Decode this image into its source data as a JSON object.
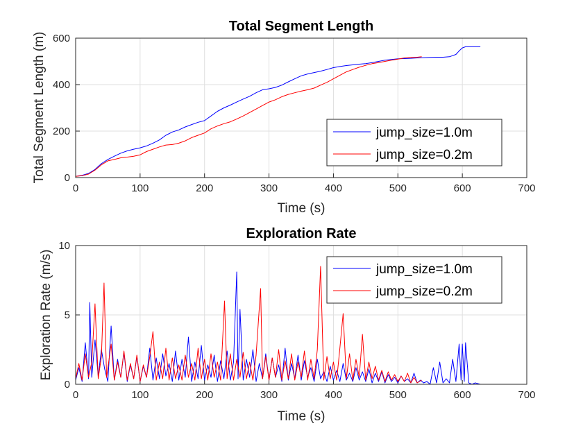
{
  "chart_data": [
    {
      "type": "line",
      "title": "Total Segment Length",
      "xlabel": "Time (s)",
      "ylabel": "Total Segment Length (m)",
      "xlim": [
        0,
        700
      ],
      "ylim": [
        0,
        600
      ],
      "xticks": [
        "0",
        "100",
        "200",
        "300",
        "400",
        "500",
        "600",
        "700"
      ],
      "yticks": [
        "0",
        "200",
        "400",
        "600"
      ],
      "grid": true,
      "legend_position": "bottom-right",
      "series": [
        {
          "name": "jump_size=1.0m",
          "color": "#0000ff",
          "x": [
            0,
            10,
            20,
            30,
            40,
            50,
            60,
            70,
            80,
            90,
            100,
            110,
            120,
            130,
            140,
            150,
            160,
            170,
            180,
            190,
            200,
            210,
            220,
            230,
            240,
            250,
            260,
            270,
            280,
            290,
            300,
            310,
            320,
            330,
            340,
            350,
            360,
            370,
            380,
            390,
            400,
            410,
            420,
            430,
            440,
            450,
            460,
            470,
            480,
            490,
            500,
            510,
            520,
            530,
            540,
            550,
            560,
            570,
            580,
            590,
            595,
            600,
            605,
            610,
            620,
            628
          ],
          "y": [
            5,
            10,
            18,
            35,
            60,
            78,
            92,
            105,
            115,
            122,
            128,
            136,
            148,
            162,
            182,
            196,
            205,
            218,
            228,
            238,
            245,
            265,
            285,
            300,
            312,
            325,
            338,
            350,
            365,
            378,
            382,
            388,
            398,
            412,
            425,
            438,
            446,
            452,
            458,
            465,
            473,
            478,
            482,
            485,
            488,
            490,
            495,
            500,
            505,
            508,
            511,
            512,
            513,
            515,
            516,
            517,
            518,
            518,
            520,
            530,
            545,
            558,
            563,
            563,
            563,
            563
          ]
        },
        {
          "name": "jump_size=0.2m",
          "color": "#ff0000",
          "x": [
            0,
            10,
            20,
            30,
            40,
            50,
            60,
            70,
            80,
            90,
            100,
            110,
            120,
            130,
            140,
            150,
            160,
            170,
            180,
            190,
            200,
            210,
            220,
            230,
            240,
            250,
            260,
            270,
            280,
            290,
            300,
            310,
            320,
            330,
            340,
            350,
            360,
            370,
            380,
            390,
            400,
            410,
            420,
            430,
            440,
            450,
            460,
            470,
            480,
            490,
            500,
            510,
            520,
            530,
            537
          ],
          "y": [
            5,
            8,
            15,
            32,
            55,
            72,
            78,
            85,
            88,
            92,
            98,
            112,
            122,
            132,
            140,
            142,
            148,
            158,
            172,
            182,
            192,
            210,
            222,
            232,
            240,
            252,
            265,
            280,
            295,
            310,
            325,
            335,
            348,
            358,
            365,
            372,
            378,
            385,
            398,
            410,
            425,
            440,
            455,
            465,
            475,
            483,
            490,
            495,
            500,
            505,
            510,
            515,
            517,
            518,
            520
          ]
        }
      ]
    },
    {
      "type": "line",
      "title": "Exploration Rate",
      "xlabel": "Time (s)",
      "ylabel": "Exploration Rate (m/s)",
      "xlim": [
        0,
        700
      ],
      "ylim": [
        0,
        10
      ],
      "xticks": [
        "0",
        "100",
        "200",
        "300",
        "400",
        "500",
        "600",
        "700"
      ],
      "yticks": [
        "0",
        "5",
        "10"
      ],
      "grid": true,
      "legend_position": "top-right",
      "series": [
        {
          "name": "jump_size=1.0m",
          "color": "#0000ff",
          "x": [
            0,
            5,
            10,
            15,
            20,
            22,
            25,
            30,
            35,
            40,
            45,
            50,
            55,
            60,
            65,
            70,
            75,
            80,
            85,
            90,
            95,
            100,
            105,
            110,
            115,
            120,
            125,
            130,
            135,
            140,
            145,
            150,
            155,
            160,
            165,
            170,
            175,
            180,
            185,
            190,
            195,
            200,
            205,
            210,
            215,
            220,
            225,
            230,
            235,
            240,
            245,
            250,
            252,
            255,
            260,
            265,
            270,
            275,
            280,
            285,
            290,
            295,
            300,
            305,
            310,
            315,
            320,
            325,
            330,
            335,
            340,
            345,
            350,
            355,
            360,
            365,
            370,
            375,
            380,
            385,
            390,
            395,
            400,
            405,
            410,
            415,
            420,
            425,
            430,
            435,
            440,
            445,
            450,
            455,
            460,
            465,
            470,
            475,
            480,
            485,
            490,
            495,
            500,
            505,
            510,
            515,
            520,
            525,
            530,
            535,
            540,
            545,
            550,
            555,
            560,
            565,
            570,
            575,
            580,
            585,
            590,
            595,
            598,
            600,
            603,
            605,
            610,
            615,
            620,
            628
          ],
          "y": [
            0.3,
            1.2,
            0.2,
            3.0,
            0.4,
            5.9,
            0.5,
            3.2,
            0.6,
            2.5,
            1.1,
            0.2,
            4.2,
            0.3,
            1.8,
            0.5,
            2.3,
            0.2,
            1.4,
            0.4,
            2.0,
            0.2,
            1.3,
            0.5,
            2.6,
            0.3,
            1.9,
            0.4,
            2.2,
            0.6,
            1.5,
            0.2,
            2.4,
            0.3,
            1.8,
            0.5,
            3.4,
            0.2,
            1.6,
            0.4,
            2.8,
            0.3,
            1.4,
            0.5,
            2.1,
            0.2,
            1.7,
            0.4,
            2.4,
            0.3,
            1.6,
            8.1,
            0.4,
            5.4,
            0.3,
            1.8,
            0.5,
            2.5,
            0.2,
            1.5,
            0.4,
            2.2,
            0.3,
            1.9,
            0.5,
            1.4,
            0.2,
            2.6,
            0.3,
            1.5,
            0.4,
            2.1,
            0.3,
            1.7,
            0.5,
            1.2,
            0.2,
            1.8,
            0.4,
            0.9,
            0.2,
            1.3,
            0.3,
            1.0,
            0.2,
            1.5,
            0.3,
            0.8,
            0.2,
            1.2,
            0.3,
            0.9,
            0.2,
            1.1,
            0.1,
            0.8,
            0.2,
            0.9,
            0.1,
            0.7,
            0.2,
            0.5,
            0.1,
            0.6,
            0.2,
            0.4,
            0.1,
            0.8,
            0.1,
            0.3,
            0.1,
            0.2,
            0.0,
            1.2,
            0.1,
            1.6,
            0.1,
            0.4,
            0.1,
            1.8,
            0.2,
            2.9,
            0.3,
            2.9,
            0.2,
            3.0,
            0.1,
            0.0,
            0.1,
            0.0
          ]
        },
        {
          "name": "jump_size=0.2m",
          "color": "#ff0000",
          "x": [
            0,
            5,
            10,
            15,
            20,
            25,
            30,
            35,
            40,
            44,
            48,
            55,
            60,
            65,
            70,
            75,
            80,
            85,
            90,
            95,
            100,
            105,
            110,
            115,
            120,
            125,
            130,
            135,
            140,
            145,
            150,
            155,
            160,
            165,
            170,
            175,
            180,
            185,
            190,
            195,
            200,
            205,
            210,
            215,
            220,
            225,
            231,
            235,
            240,
            245,
            250,
            255,
            260,
            265,
            270,
            275,
            280,
            287,
            290,
            295,
            300,
            305,
            310,
            315,
            320,
            325,
            330,
            335,
            340,
            345,
            350,
            355,
            360,
            365,
            370,
            375,
            380,
            385,
            390,
            395,
            400,
            405,
            410,
            415,
            420,
            425,
            430,
            435,
            440,
            445,
            450,
            455,
            460,
            465,
            470,
            475,
            480,
            485,
            490,
            495,
            500,
            505,
            510,
            515,
            520,
            525,
            530,
            537
          ],
          "y": [
            0.4,
            1.5,
            0.3,
            2.2,
            0.5,
            1.6,
            5.8,
            0.4,
            2.0,
            7.3,
            0.5,
            2.9,
            0.3,
            1.6,
            0.5,
            2.4,
            0.3,
            1.5,
            0.4,
            2.1,
            0.2,
            1.4,
            0.5,
            2.0,
            3.8,
            0.3,
            1.6,
            0.4,
            2.6,
            0.3,
            1.9,
            0.4,
            1.4,
            0.3,
            2.1,
            0.5,
            1.5,
            0.3,
            2.6,
            0.4,
            1.8,
            0.3,
            2.2,
            0.5,
            1.6,
            0.3,
            6.0,
            0.4,
            2.2,
            0.3,
            1.8,
            0.5,
            2.3,
            0.4,
            1.6,
            0.3,
            2.1,
            6.9,
            0.4,
            2.0,
            0.3,
            1.9,
            0.5,
            2.5,
            0.3,
            1.7,
            0.4,
            2.2,
            0.3,
            1.6,
            0.5,
            2.4,
            0.3,
            1.8,
            0.4,
            2.5,
            8.5,
            0.3,
            2.0,
            0.4,
            1.6,
            0.3,
            2.6,
            5.1,
            0.4,
            2.2,
            0.3,
            1.8,
            0.5,
            3.6,
            0.3,
            1.6,
            0.4,
            1.3,
            0.3,
            1.0,
            0.2,
            0.9,
            0.3,
            0.7,
            0.2,
            0.6,
            0.2,
            0.8,
            0.1,
            0.5,
            0.1,
            0.3
          ]
        }
      ]
    }
  ]
}
